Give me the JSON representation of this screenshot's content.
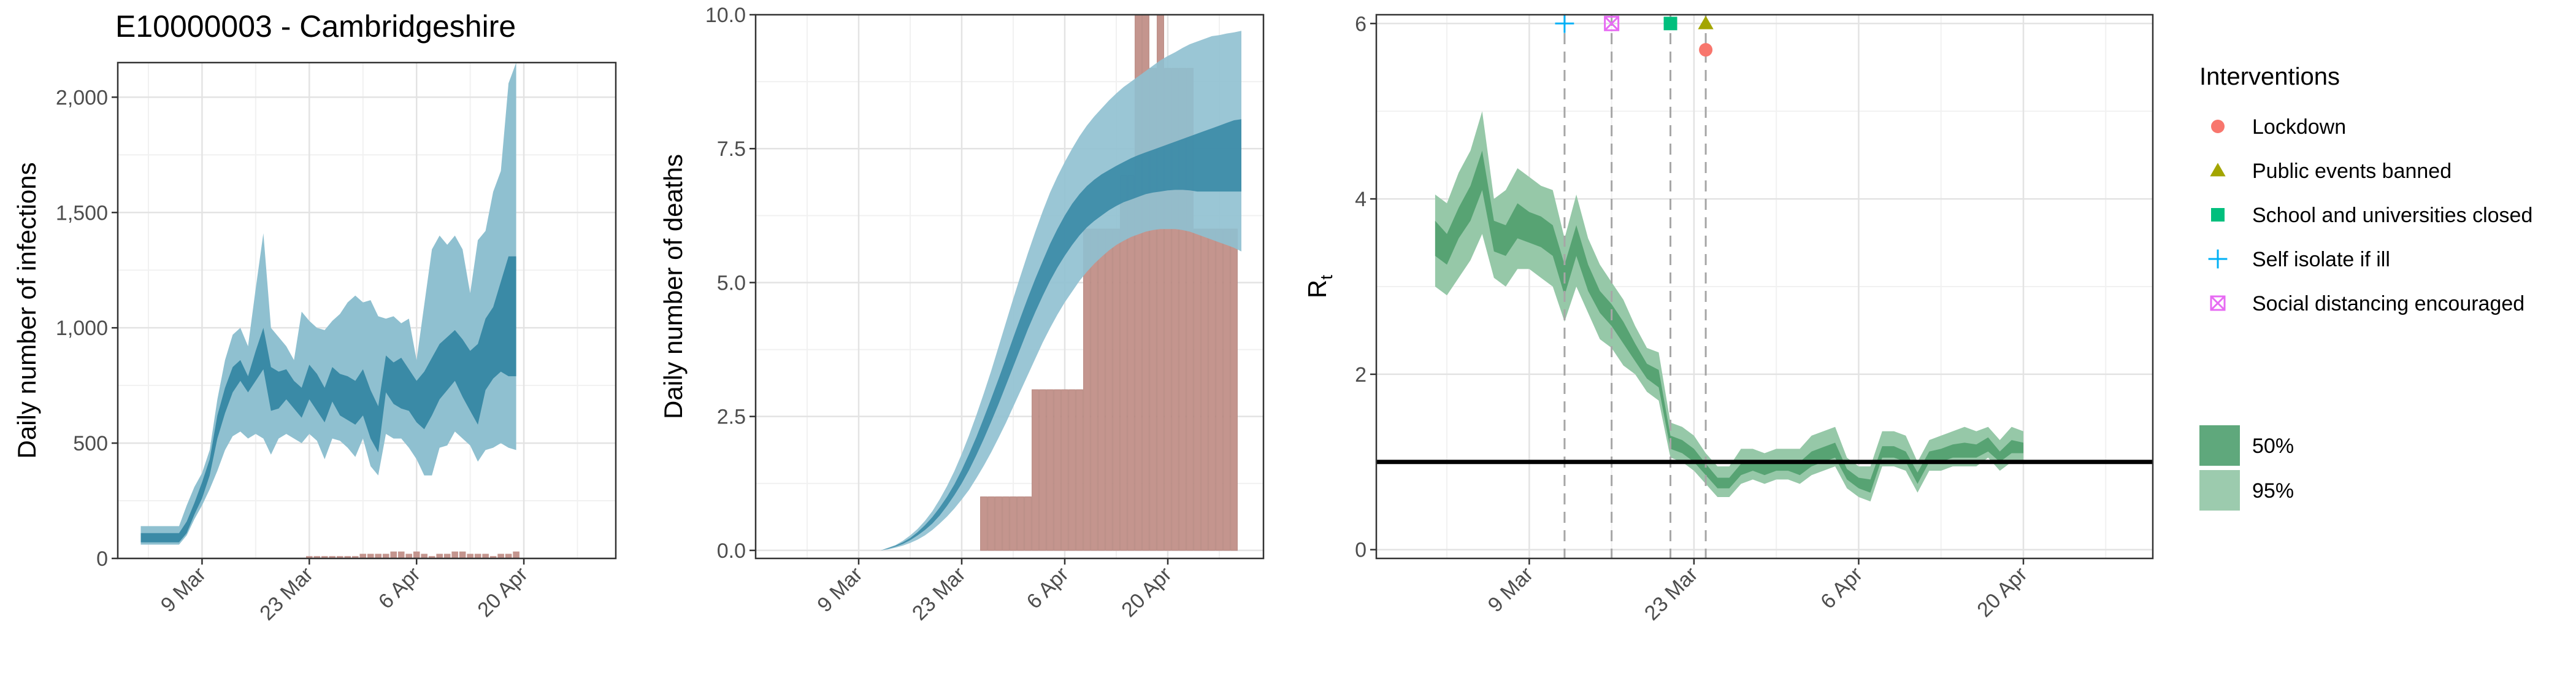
{
  "figure": {
    "title": "E10000003 - Cambridgeshire",
    "colors": {
      "infection_outer": "#8fc0d0",
      "infection_inner": "#3a8aa6",
      "death_bar": "#c4958e",
      "rt_outer": "#96c8a8",
      "rt_inner": "#57a373",
      "vline": "#a6a6a6",
      "lockdown": "#f8766d",
      "public_events": "#a3a500",
      "schools": "#00bf7d",
      "self_isolate": "#00b0f6",
      "social_distancing": "#e76bf3"
    }
  },
  "chart_data": [
    {
      "type": "area",
      "title": "E10000003 - Cambridgeshire",
      "ylabel": "Daily number of infections",
      "xlabel": "",
      "x_start": "2020-03-01",
      "xlim": [
        "2020-02-27",
        "2020-05-02"
      ],
      "ylim": [
        0,
        2150
      ],
      "y_ticks": [
        0,
        500,
        1000,
        1500,
        2000
      ],
      "y_tick_labels": [
        "0",
        "500",
        "1,000",
        "1,500",
        "2,000"
      ],
      "x_ticks": [
        "2020-03-09",
        "2020-03-23",
        "2020-04-06",
        "2020-04-20"
      ],
      "x_tick_labels": [
        "9 Mar",
        "23 Mar",
        "6 Apr",
        "20 Apr"
      ],
      "grid": true,
      "series": [
        {
          "name": "95%",
          "lower": [
            60,
            60,
            60,
            60,
            60,
            60,
            100,
            170,
            230,
            300,
            380,
            470,
            530,
            550,
            520,
            540,
            520,
            450,
            520,
            540,
            520,
            500,
            540,
            510,
            430,
            520,
            510,
            480,
            440,
            520,
            400,
            360,
            540,
            520,
            520,
            480,
            430,
            360,
            360,
            480,
            490,
            550,
            520,
            490,
            420,
            470,
            480,
            500,
            480,
            470
          ],
          "upper": [
            140,
            140,
            140,
            140,
            140,
            140,
            230,
            310,
            370,
            470,
            690,
            860,
            970,
            1000,
            920,
            1170,
            1410,
            1000,
            960,
            920,
            860,
            1070,
            1030,
            1000,
            990,
            1030,
            1060,
            1110,
            1140,
            1110,
            1120,
            1050,
            1040,
            1050,
            1020,
            1040,
            860,
            1100,
            1340,
            1400,
            1360,
            1400,
            1340,
            1150,
            1380,
            1420,
            1590,
            1680,
            2060,
            2150
          ]
        },
        {
          "name": "50%",
          "lower": [
            70,
            70,
            70,
            70,
            70,
            70,
            110,
            190,
            260,
            360,
            520,
            630,
            720,
            770,
            720,
            770,
            820,
            640,
            650,
            690,
            650,
            610,
            690,
            640,
            590,
            680,
            620,
            600,
            580,
            620,
            520,
            460,
            720,
            670,
            650,
            640,
            590,
            560,
            620,
            690,
            730,
            770,
            700,
            640,
            580,
            730,
            780,
            810,
            790,
            790
          ],
          "upper": [
            110,
            110,
            110,
            110,
            110,
            110,
            160,
            240,
            330,
            430,
            620,
            740,
            830,
            860,
            790,
            900,
            1000,
            830,
            810,
            820,
            770,
            740,
            840,
            800,
            740,
            830,
            800,
            790,
            770,
            820,
            730,
            660,
            880,
            850,
            870,
            820,
            770,
            810,
            870,
            930,
            960,
            990,
            950,
            900,
            930,
            1040,
            1090,
            1200,
            1310,
            1310
          ]
        }
      ],
      "deaths_bars": [
        0,
        0,
        0,
        0,
        0,
        0,
        0,
        0,
        0,
        0,
        0,
        0,
        0,
        0,
        0,
        0,
        0,
        0,
        0,
        0,
        0,
        0,
        10,
        10,
        10,
        10,
        10,
        10,
        10,
        20,
        20,
        20,
        20,
        30,
        30,
        20,
        30,
        20,
        10,
        20,
        20,
        30,
        30,
        20,
        20,
        20,
        10,
        20,
        20,
        30
      ]
    },
    {
      "type": "bar",
      "ylabel": "Daily number of deaths",
      "xlabel": "",
      "x_start": "2020-03-01",
      "xlim": [
        "2020-02-24",
        "2020-05-03"
      ],
      "ylim": [
        -0.15,
        10
      ],
      "y_ticks": [
        0,
        2.5,
        5,
        7.5,
        10
      ],
      "y_tick_labels": [
        "0.0",
        "2.5",
        "5.0",
        "7.5",
        "10.0"
      ],
      "x_ticks": [
        "2020-03-09",
        "2020-03-23",
        "2020-04-06",
        "2020-04-20"
      ],
      "x_tick_labels": [
        "9 Mar",
        "23 Mar",
        "6 Apr",
        "20 Apr"
      ],
      "grid": true,
      "bars_start": "2020-03-26",
      "bars": [
        1,
        1,
        1,
        1,
        1,
        1,
        1,
        3,
        3,
        3,
        3,
        3,
        3,
        3,
        6,
        6,
        6,
        6,
        6,
        7,
        7,
        10,
        10,
        9,
        10,
        9,
        9,
        9,
        9,
        6,
        6,
        6,
        6,
        6,
        6
      ],
      "series": [
        {
          "name": "95%",
          "lower": [
            0,
            0,
            0,
            0,
            0,
            0,
            0,
            0,
            0,
            0,
            0,
            0,
            0.02,
            0.05,
            0.09,
            0.14,
            0.2,
            0.28,
            0.38,
            0.5,
            0.63,
            0.78,
            0.95,
            1.13,
            1.35,
            1.58,
            1.83,
            2.1,
            2.38,
            2.68,
            2.98,
            3.28,
            3.58,
            3.88,
            4.15,
            4.4,
            4.63,
            4.83,
            5.03,
            5.2,
            5.35,
            5.48,
            5.6,
            5.7,
            5.78,
            5.85,
            5.9,
            5.95,
            5.98,
            6.0,
            6.0,
            6.0,
            5.98,
            5.95,
            5.9,
            5.85,
            5.8,
            5.75,
            5.7,
            5.65,
            5.58
          ],
          "upper": [
            0,
            0,
            0,
            0,
            0,
            0,
            0,
            0,
            0,
            0,
            0,
            0,
            0.05,
            0.1,
            0.18,
            0.28,
            0.4,
            0.55,
            0.73,
            0.95,
            1.2,
            1.48,
            1.8,
            2.15,
            2.53,
            2.93,
            3.35,
            3.8,
            4.25,
            4.7,
            5.13,
            5.55,
            5.95,
            6.33,
            6.68,
            6.98,
            7.25,
            7.5,
            7.73,
            7.93,
            8.1,
            8.25,
            8.4,
            8.53,
            8.65,
            8.75,
            8.85,
            8.95,
            9.05,
            9.15,
            9.23,
            9.3,
            9.38,
            9.45,
            9.5,
            9.55,
            9.6,
            9.62,
            9.65,
            9.67,
            9.7
          ]
        },
        {
          "name": "50%",
          "lower": [
            0,
            0,
            0,
            0,
            0,
            0,
            0,
            0,
            0,
            0,
            0,
            0,
            0.03,
            0.07,
            0.12,
            0.19,
            0.28,
            0.38,
            0.5,
            0.65,
            0.83,
            1.03,
            1.25,
            1.5,
            1.78,
            2.08,
            2.4,
            2.73,
            3.08,
            3.43,
            3.78,
            4.13,
            4.45,
            4.75,
            5.03,
            5.28,
            5.5,
            5.7,
            5.88,
            6.03,
            6.15,
            6.25,
            6.35,
            6.43,
            6.5,
            6.55,
            6.6,
            6.65,
            6.68,
            6.7,
            6.72,
            6.73,
            6.73,
            6.72,
            6.7,
            6.7,
            6.7,
            6.7,
            6.7,
            6.7,
            6.7
          ],
          "upper": [
            0,
            0,
            0,
            0,
            0,
            0,
            0,
            0,
            0,
            0,
            0,
            0,
            0.04,
            0.09,
            0.15,
            0.23,
            0.34,
            0.47,
            0.62,
            0.8,
            1.0,
            1.23,
            1.5,
            1.8,
            2.12,
            2.47,
            2.83,
            3.2,
            3.58,
            3.97,
            4.35,
            4.72,
            5.07,
            5.4,
            5.72,
            6.0,
            6.25,
            6.47,
            6.65,
            6.8,
            6.92,
            7.02,
            7.1,
            7.18,
            7.25,
            7.32,
            7.38,
            7.43,
            7.48,
            7.53,
            7.58,
            7.63,
            7.68,
            7.73,
            7.78,
            7.83,
            7.88,
            7.93,
            7.98,
            8.03,
            8.05
          ]
        }
      ]
    },
    {
      "type": "line",
      "ylabel": "R",
      "ylabel_subscript": "t",
      "xlabel": "",
      "x_start": "2020-03-01",
      "xlim": [
        "2020-02-25",
        "2020-05-01"
      ],
      "ylim": [
        -0.1,
        6.1
      ],
      "y_ticks": [
        0,
        2,
        4,
        6
      ],
      "y_tick_labels": [
        "0",
        "2",
        "4",
        "6"
      ],
      "x_ticks": [
        "2020-03-09",
        "2020-03-23",
        "2020-04-06",
        "2020-04-20"
      ],
      "x_tick_labels": [
        "9 Mar",
        "23 Mar",
        "6 Apr",
        "20 Apr"
      ],
      "grid": true,
      "reference_line": 1.0,
      "series": [
        {
          "name": "95%",
          "lower": [
            3.0,
            2.9,
            3.1,
            3.3,
            3.6,
            3.1,
            3.0,
            3.2,
            3.2,
            3.1,
            3.0,
            2.6,
            3.0,
            2.7,
            2.4,
            2.3,
            2.1,
            2.0,
            1.8,
            1.7,
            1.05,
            1.0,
            0.9,
            0.75,
            0.6,
            0.6,
            0.75,
            0.8,
            0.75,
            0.8,
            0.8,
            0.75,
            0.85,
            0.9,
            0.95,
            0.7,
            0.6,
            0.55,
            0.95,
            0.95,
            0.9,
            0.65,
            0.9,
            0.9,
            0.95,
            0.95,
            0.95,
            1.05,
            0.9,
            1.0,
            1.0
          ],
          "upper": [
            4.05,
            3.95,
            4.3,
            4.55,
            5.0,
            4.0,
            4.1,
            4.35,
            4.25,
            4.15,
            4.1,
            3.55,
            4.05,
            3.55,
            3.25,
            3.05,
            2.85,
            2.55,
            2.3,
            2.25,
            1.45,
            1.4,
            1.3,
            1.1,
            0.95,
            0.95,
            1.15,
            1.15,
            1.1,
            1.15,
            1.15,
            1.15,
            1.3,
            1.35,
            1.4,
            1.05,
            0.95,
            0.95,
            1.35,
            1.35,
            1.3,
            1.0,
            1.25,
            1.3,
            1.35,
            1.4,
            1.35,
            1.4,
            1.25,
            1.4,
            1.35
          ]
        },
        {
          "name": "50%",
          "lower": [
            3.35,
            3.25,
            3.55,
            3.75,
            4.1,
            3.4,
            3.35,
            3.55,
            3.5,
            3.45,
            3.35,
            2.9,
            3.35,
            2.95,
            2.7,
            2.55,
            2.35,
            2.15,
            1.95,
            1.85,
            1.15,
            1.1,
            1.0,
            0.85,
            0.7,
            0.7,
            0.85,
            0.9,
            0.85,
            0.9,
            0.9,
            0.85,
            0.95,
            1.0,
            1.05,
            0.8,
            0.7,
            0.65,
            1.05,
            1.05,
            1.0,
            0.75,
            1.0,
            1.0,
            1.05,
            1.05,
            1.05,
            1.12,
            1.0,
            1.1,
            1.1
          ],
          "upper": [
            3.75,
            3.6,
            3.9,
            4.15,
            4.55,
            3.75,
            3.7,
            3.95,
            3.85,
            3.8,
            3.7,
            3.25,
            3.7,
            3.25,
            2.95,
            2.8,
            2.6,
            2.35,
            2.12,
            2.05,
            1.3,
            1.25,
            1.15,
            0.98,
            0.82,
            0.82,
            0.98,
            1.02,
            0.98,
            1.02,
            1.02,
            1.0,
            1.12,
            1.17,
            1.22,
            0.92,
            0.82,
            0.8,
            1.18,
            1.18,
            1.12,
            0.88,
            1.12,
            1.15,
            1.2,
            1.22,
            1.2,
            1.28,
            1.12,
            1.25,
            1.22
          ]
        }
      ],
      "interventions": [
        {
          "name": "Self isolate if ill",
          "date": "2020-03-12",
          "marker_y": 6.0
        },
        {
          "name": "Social distancing encouraged",
          "date": "2020-03-16",
          "marker_y": 6.0
        },
        {
          "name": "School and universities closed",
          "date": "2020-03-21",
          "marker_y": 6.0
        },
        {
          "name": "Public events banned",
          "date": "2020-03-24",
          "marker_y": 6.0
        },
        {
          "name": "Lockdown",
          "date": "2020-03-24",
          "marker_y": 5.7
        }
      ]
    }
  ],
  "legend": {
    "interventions_title": "Interventions",
    "interventions": [
      {
        "label": "Lockdown",
        "marker": "circle",
        "color": "#f8766d"
      },
      {
        "label": "Public events banned",
        "marker": "triangle",
        "color": "#a3a500"
      },
      {
        "label": "School and universities closed",
        "marker": "square",
        "color": "#00bf7d"
      },
      {
        "label": "Self isolate if ill",
        "marker": "plus",
        "color": "#00b0f6"
      },
      {
        "label": "Social distancing encouraged",
        "marker": "boxed-x",
        "color": "#e76bf3"
      }
    ],
    "ci": [
      {
        "label": "50%",
        "color": "#5fa87c"
      },
      {
        "label": "95%",
        "color": "#9ccbae"
      }
    ]
  }
}
